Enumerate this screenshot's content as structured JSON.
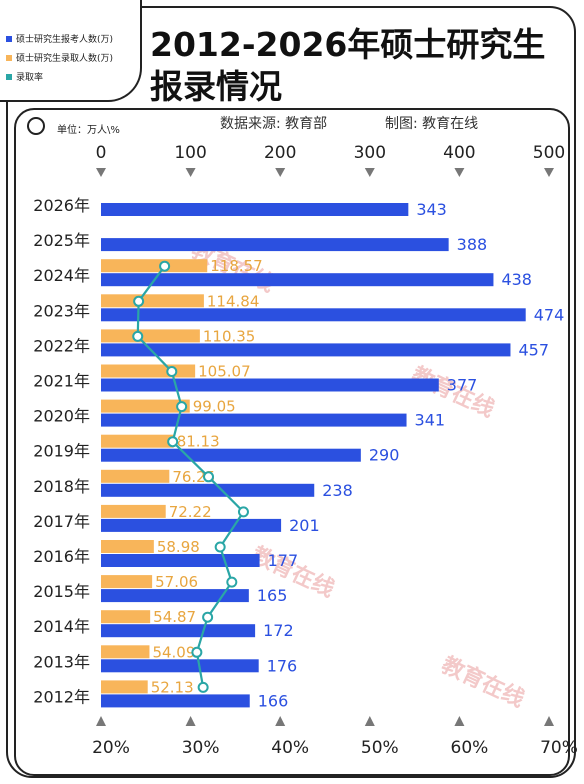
{
  "legend": {
    "items": [
      {
        "label": "硕士研究生报考人数(万)",
        "color": "#2b50e0"
      },
      {
        "label": "硕士研究生录取人数(万)",
        "color": "#f8b55a"
      },
      {
        "label": "录取率",
        "color": "#2aa6a6"
      }
    ]
  },
  "title": {
    "line1": "2012-2026年硕士研究生",
    "line2": "报录情况"
  },
  "unit": "单位：万人\\%",
  "source": "数据来源: 教育部",
  "maker": "制图: 教育在线",
  "chart_data": {
    "type": "bar",
    "categories": [
      "2026年",
      "2025年",
      "2024年",
      "2023年",
      "2022年",
      "2021年",
      "2020年",
      "2019年",
      "2018年",
      "2017年",
      "2016年",
      "2015年",
      "2014年",
      "2013年",
      "2012年"
    ],
    "series": [
      {
        "name": "硕士研究生报考人数(万)",
        "color": "#2b50e0",
        "values": [
          343,
          388,
          438,
          474,
          457,
          377,
          341,
          290,
          238,
          201,
          177,
          165,
          172,
          176,
          166
        ],
        "labels": [
          "343",
          "388",
          "438",
          "474",
          "457",
          "377",
          "341",
          "290",
          "238",
          "201",
          "177",
          "165",
          "172",
          "176",
          "166"
        ]
      },
      {
        "name": "硕士研究生录取人数(万)",
        "color": "#f8b55a",
        "values": [
          null,
          null,
          118.57,
          114.84,
          110.35,
          105.07,
          99.05,
          81.13,
          76.25,
          72.22,
          58.98,
          57.06,
          54.87,
          54.09,
          52.13
        ],
        "labels": [
          "",
          "",
          "118.57",
          "114.84",
          "110.35",
          "105.07",
          "99.05",
          "81.13",
          "76.25",
          "72.22",
          "58.98",
          "57.06",
          "54.87",
          "54.09",
          "52.13"
        ]
      },
      {
        "name": "录取率",
        "color": "#2aa6a6",
        "values": [
          null,
          null,
          27.1,
          24.2,
          24.1,
          27.9,
          29.0,
          28.0,
          32.0,
          35.9,
          33.3,
          34.6,
          31.9,
          30.7,
          31.4
        ]
      }
    ],
    "x_axis_top": {
      "ticks": [
        "0",
        "100",
        "200",
        "300",
        "400",
        "500"
      ],
      "range": [
        0,
        500
      ]
    },
    "x_axis_bottom": {
      "ticks": [
        "20%",
        "30%",
        "40%",
        "50%",
        "60%",
        "70%"
      ],
      "range": [
        20,
        70
      ]
    },
    "watermark": "教育在线"
  }
}
